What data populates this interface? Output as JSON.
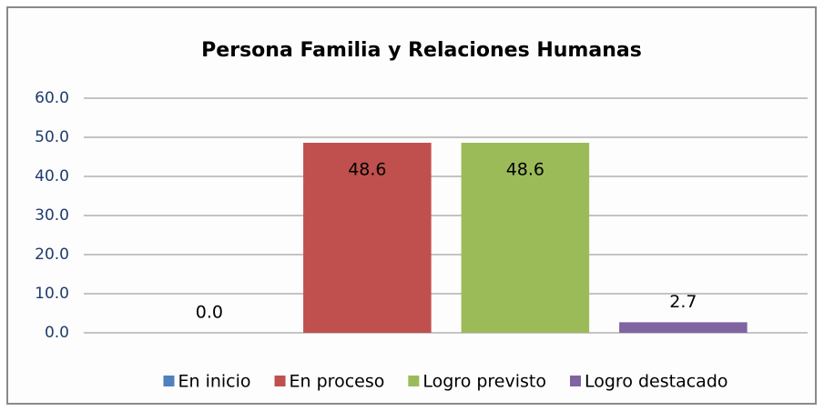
{
  "chart_data": {
    "type": "bar",
    "title": "Persona Familia y Relaciones Humanas",
    "categories": [
      null
    ],
    "series": [
      {
        "name": "En inicio",
        "color": "#4f81bd",
        "values": [
          0
        ],
        "value_labels": [
          "0.0"
        ]
      },
      {
        "name": "En proceso",
        "color": "#c0504d",
        "values": [
          48.6
        ]
      },
      {
        "name": "Logro previsto",
        "color": "#9bbb59",
        "values": [
          48.6
        ]
      },
      {
        "name": "Logro destacado",
        "color": "#8064a2",
        "values": [
          2.7
        ]
      }
    ],
    "ylim": [
      0,
      60
    ],
    "yticks": [
      {
        "value": 0,
        "label": "0.0"
      },
      {
        "value": 10,
        "label": "10.0"
      },
      {
        "value": 20,
        "label": "20.0"
      },
      {
        "value": 30,
        "label": "30.0"
      },
      {
        "value": 40,
        "label": "40.0"
      },
      {
        "value": 50,
        "label": "50.0"
      },
      {
        "value": 60,
        "label": "60.0"
      }
    ],
    "grid": true,
    "legend": "bottom"
  }
}
